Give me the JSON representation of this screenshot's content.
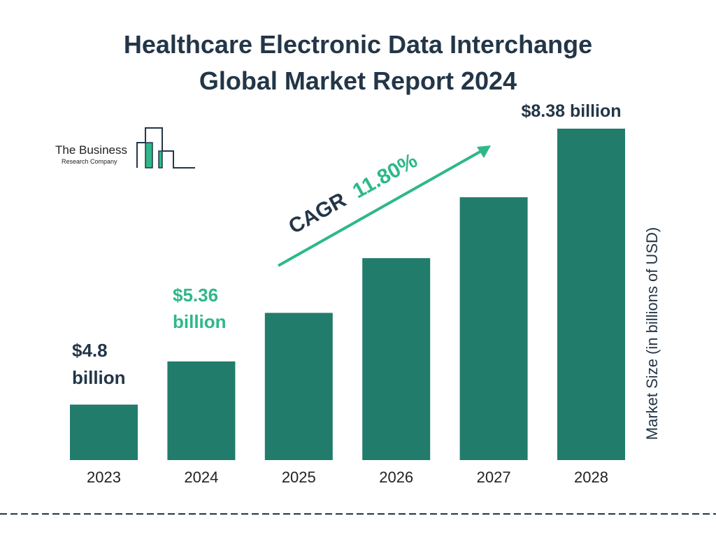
{
  "title_line1": "Healthcare Electronic Data Interchange",
  "title_line2": "Global Market Report 2024",
  "logo": {
    "line1": "The Business",
    "line2": "Research Company"
  },
  "colors": {
    "bar": "#217c6c",
    "title": "#233648",
    "accent": "#2eb88a"
  },
  "chart_data": {
    "type": "bar",
    "categories": [
      "2023",
      "2024",
      "2025",
      "2026",
      "2027",
      "2028"
    ],
    "values": [
      4.8,
      5.36,
      5.99,
      6.7,
      7.49,
      8.38
    ],
    "ylabel": "Market Size (in billions of USD)",
    "data_labels": [
      {
        "category": "2023",
        "line1": "$4.8",
        "line2": "billion"
      },
      {
        "category": "2024",
        "line1": "$5.36",
        "line2": "billion"
      },
      {
        "category": "2028",
        "text": "$8.38 billion"
      }
    ],
    "annotation": {
      "prefix": "CAGR",
      "value": "11.80%"
    },
    "grid": false
  }
}
